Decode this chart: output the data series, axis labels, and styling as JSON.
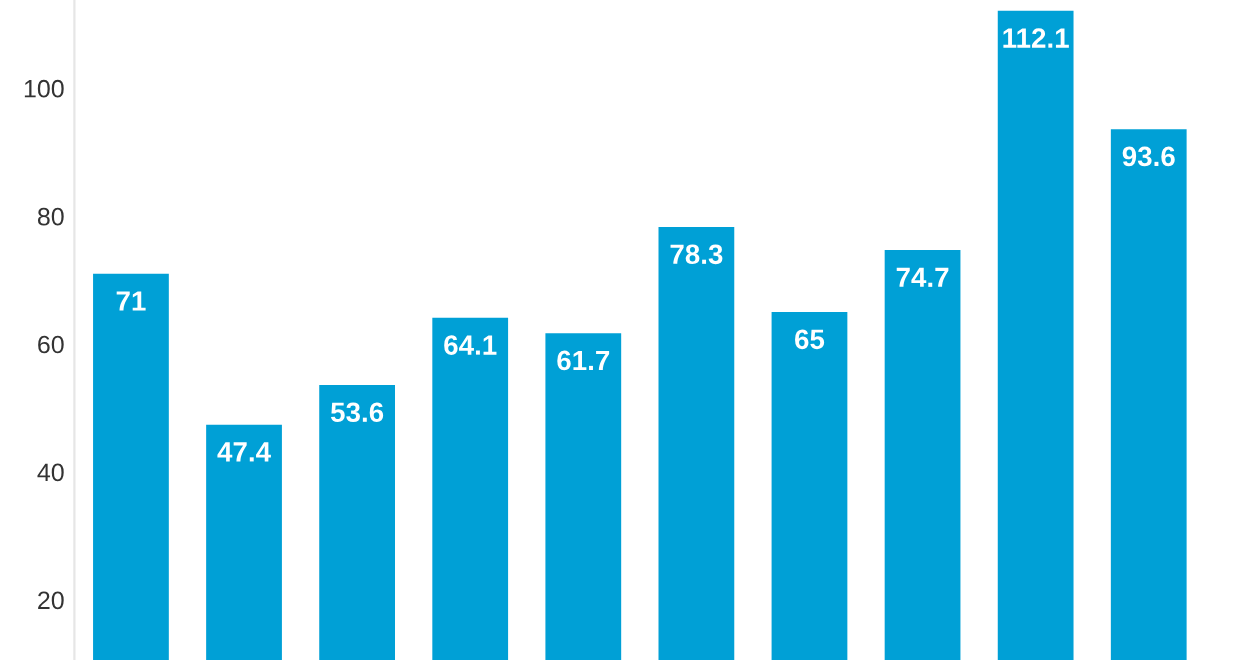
{
  "chart_data": {
    "type": "bar",
    "categories": [
      null,
      null,
      null,
      null,
      null,
      null,
      null,
      null,
      null,
      null
    ],
    "values": [
      71,
      47.4,
      53.6,
      64.1,
      61.7,
      78.3,
      65,
      74.7,
      112.1,
      93.6
    ],
    "color": "#00a0d6",
    "ylim": [
      10.6,
      113.8
    ],
    "yticks": [
      20,
      40,
      60,
      80,
      100
    ],
    "data_labels": true,
    "grid": false,
    "legend": false
  }
}
